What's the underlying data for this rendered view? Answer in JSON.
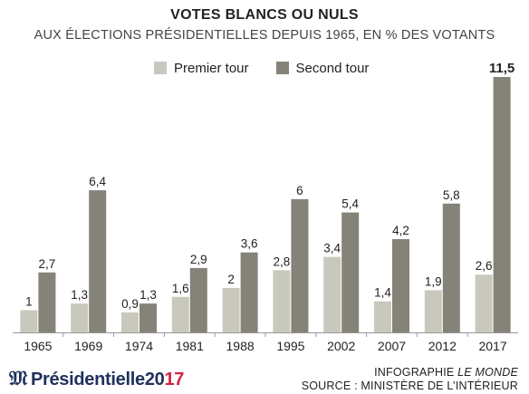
{
  "header": {
    "title": "VOTES BLANCS OU NULS",
    "subtitle": "AUX ÉLECTIONS PRÉSIDENTIELLES DEPUIS 1965, EN % DES VOTANTS"
  },
  "colors": {
    "premier_tour": "#c9c8bd",
    "second_tour": "#858278"
  },
  "chart_data": {
    "type": "bar",
    "title": "VOTES BLANCS OU NULS",
    "subtitle": "AUX ÉLECTIONS PRÉSIDENTIELLES DEPUIS 1965, EN % DES VOTANTS",
    "categories": [
      "1965",
      "1969",
      "1974",
      "1981",
      "1988",
      "1995",
      "2002",
      "2007",
      "2012",
      "2017"
    ],
    "series": [
      {
        "name": "Premier tour",
        "values": [
          1,
          1.3,
          0.9,
          1.6,
          2,
          2.8,
          3.4,
          1.4,
          1.9,
          2.6
        ],
        "labels": [
          "1",
          "1,3",
          "0,9",
          "1,6",
          "2",
          "2,8",
          "3,4",
          "1,4",
          "1,9",
          "2,6"
        ]
      },
      {
        "name": "Second tour",
        "values": [
          2.7,
          6.4,
          1.3,
          2.9,
          3.6,
          6,
          5.4,
          4.2,
          5.8,
          11.5
        ],
        "labels": [
          "2,7",
          "6,4",
          "1,3",
          "2,9",
          "3,6",
          "6",
          "5,4",
          "4,2",
          "5,8",
          "11,5"
        ]
      }
    ],
    "highlight_label": "11,5",
    "ylim": [
      0,
      11.5
    ],
    "grid": false,
    "legend_position": "top"
  },
  "footer": {
    "brand_prefix": "Présidentielle ",
    "brand_year_a": "20",
    "brand_year_b": "17",
    "credit_line1_prefix": "INFOGRAPHIE ",
    "credit_line1_italic": "LE MONDE",
    "credit_line2": "SOURCE : MINISTÈRE DE L’INTÉRIEUR"
  }
}
